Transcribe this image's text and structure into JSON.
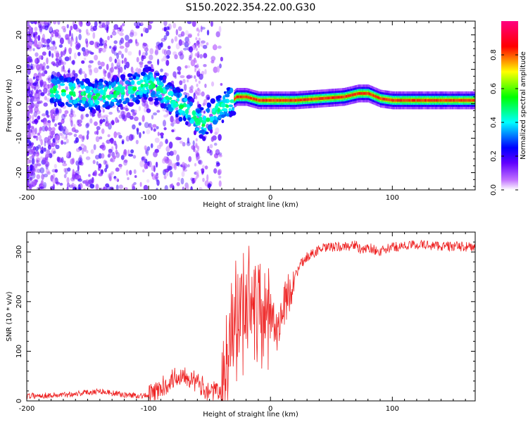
{
  "title": "S150.2022.354.22.00.G30",
  "chart_data": [
    {
      "type": "heatmap",
      "xlabel": "Height of straight line (km)",
      "ylabel": "Frequency (Hz)",
      "xlim": [
        -200,
        168
      ],
      "ylim": [
        -25,
        24
      ],
      "xticks": [
        -200,
        -100,
        0,
        100
      ],
      "yticks": [
        -20,
        -10,
        0,
        10,
        20
      ],
      "ridge": {
        "x": [
          -175,
          -160,
          -145,
          -130,
          -115,
          -100,
          -90,
          -80,
          -70,
          -62,
          -55,
          -50,
          -45,
          -40,
          -35,
          -28,
          -20,
          -10,
          0,
          20,
          40,
          60,
          72,
          80,
          90,
          100,
          120,
          140,
          168
        ],
        "f": [
          4,
          3,
          2,
          3,
          4,
          6,
          4,
          1,
          -1,
          -4,
          -6,
          -4,
          -2,
          -1,
          0,
          2,
          2,
          1,
          1,
          1,
          1.5,
          2,
          3,
          3,
          1.5,
          1,
          1,
          1,
          1
        ]
      },
      "colorbar": {
        "label": "Normalized spectral amplitude",
        "ticks": [
          "0.0",
          "0.2",
          "0.4",
          "0.6",
          "0.8"
        ],
        "range": [
          0,
          1
        ],
        "colors": [
          "#ffffff",
          "#8000ff",
          "#0000ff",
          "#00ffff",
          "#00ff00",
          "#ffff00",
          "#ff0000",
          "#ff0080"
        ]
      }
    },
    {
      "type": "line",
      "xlabel": "Height of straight line (km)",
      "ylabel": "SNR (10 * v/v)",
      "xlim": [
        -200,
        168
      ],
      "ylim": [
        0,
        340
      ],
      "xticks": [
        -200,
        -100,
        0,
        100
      ],
      "yticks": [
        0,
        100,
        200,
        300
      ],
      "color": "#ee2222",
      "series": [
        {
          "name": "SNR",
          "x": [
            -200,
            -170,
            -140,
            -120,
            -100,
            -90,
            -80,
            -70,
            -60,
            -50,
            -40,
            -35,
            -30,
            -25,
            -20,
            -15,
            -10,
            -5,
            0,
            5,
            10,
            15,
            20,
            25,
            30,
            40,
            50,
            60,
            70,
            75,
            80,
            90,
            100,
            110,
            120,
            140,
            168
          ],
          "y": [
            10,
            12,
            20,
            12,
            10,
            25,
            45,
            55,
            35,
            20,
            15,
            60,
            150,
            180,
            170,
            210,
            200,
            180,
            190,
            140,
            180,
            220,
            250,
            275,
            290,
            305,
            310,
            310,
            315,
            300,
            310,
            300,
            310,
            312,
            315,
            312,
            310
          ]
        }
      ]
    }
  ]
}
